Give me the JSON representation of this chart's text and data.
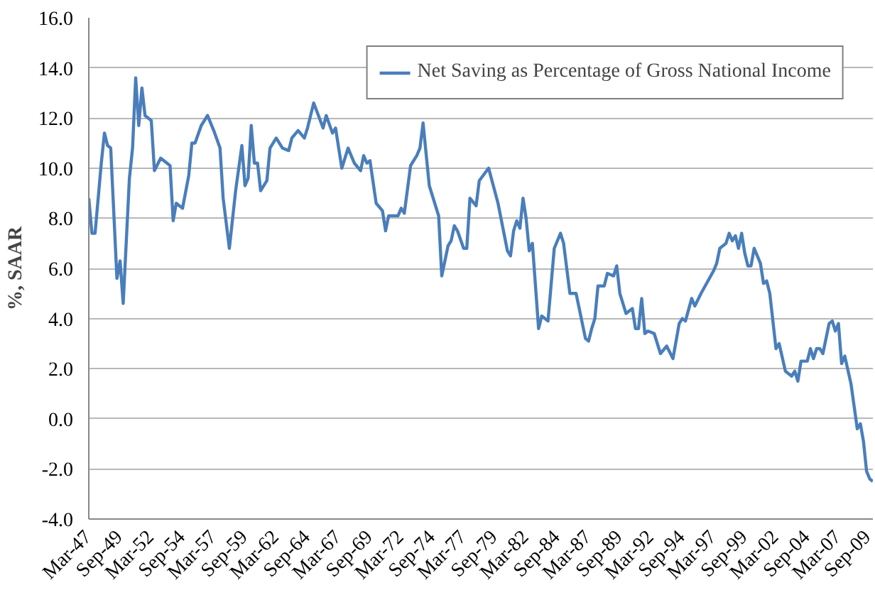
{
  "chart_data": {
    "type": "line",
    "ylabel": "%, SAAR",
    "legend": "top right",
    "grid": "y",
    "line_style": "solid",
    "marker": "none",
    "xlim": [
      "1947-03",
      "2009-12"
    ],
    "ylim": [
      -4,
      16
    ],
    "yticks": [
      {
        "value": -4,
        "label": "-4.0"
      },
      {
        "value": -2,
        "label": "-2.0"
      },
      {
        "value": 0,
        "label": "0.0"
      },
      {
        "value": 2,
        "label": "2.0"
      },
      {
        "value": 4,
        "label": "4.0"
      },
      {
        "value": 6,
        "label": "6.0"
      },
      {
        "value": 8,
        "label": "8.0"
      },
      {
        "value": 10,
        "label": "10.0"
      },
      {
        "value": 12,
        "label": "12.0"
      },
      {
        "value": 14,
        "label": "14.0"
      },
      {
        "value": 16,
        "label": "16.0"
      }
    ],
    "xticks": [
      {
        "value": "1947-03",
        "label": "Mar-47"
      },
      {
        "value": "1949-09",
        "label": "Sep-49"
      },
      {
        "value": "1952-03",
        "label": "Mar-52"
      },
      {
        "value": "1954-09",
        "label": "Sep-54"
      },
      {
        "value": "1957-03",
        "label": "Mar-57"
      },
      {
        "value": "1959-09",
        "label": "Sep-59"
      },
      {
        "value": "1962-03",
        "label": "Mar-62"
      },
      {
        "value": "1964-09",
        "label": "Sep-64"
      },
      {
        "value": "1967-03",
        "label": "Mar-67"
      },
      {
        "value": "1969-09",
        "label": "Sep-69"
      },
      {
        "value": "1972-03",
        "label": "Mar-72"
      },
      {
        "value": "1974-09",
        "label": "Sep-74"
      },
      {
        "value": "1977-03",
        "label": "Mar-77"
      },
      {
        "value": "1979-09",
        "label": "Sep-79"
      },
      {
        "value": "1982-03",
        "label": "Mar-82"
      },
      {
        "value": "1984-09",
        "label": "Sep-84"
      },
      {
        "value": "1987-03",
        "label": "Mar-87"
      },
      {
        "value": "1989-09",
        "label": "Sep-89"
      },
      {
        "value": "1992-03",
        "label": "Mar-92"
      },
      {
        "value": "1994-09",
        "label": "Sep-94"
      },
      {
        "value": "1997-03",
        "label": "Mar-97"
      },
      {
        "value": "1999-09",
        "label": "Sep-99"
      },
      {
        "value": "2002-03",
        "label": "Mar-02"
      },
      {
        "value": "2004-09",
        "label": "Sep-04"
      },
      {
        "value": "2007-03",
        "label": "Mar-07"
      },
      {
        "value": "2009-09",
        "label": "Sep-09"
      }
    ],
    "series": [
      {
        "name": "Net Saving as Percentage of Gross National Income",
        "color": "#4a7ebb",
        "x": [
          "1947-03",
          "1947-06",
          "1947-09",
          "1948-03",
          "1948-06",
          "1948-09",
          "1948-12",
          "1949-06",
          "1949-09",
          "1949-12",
          "1950-06",
          "1950-09",
          "1950-12",
          "1951-03",
          "1951-06",
          "1951-09",
          "1952-03",
          "1952-06",
          "1952-12",
          "1953-09",
          "1953-12",
          "1954-03",
          "1954-09",
          "1955-03",
          "1955-06",
          "1955-09",
          "1956-03",
          "1956-09",
          "1957-03",
          "1957-09",
          "1957-12",
          "1958-06",
          "1958-12",
          "1959-06",
          "1959-09",
          "1959-12",
          "1960-03",
          "1960-06",
          "1960-09",
          "1960-12",
          "1961-06",
          "1961-09",
          "1962-03",
          "1962-09",
          "1963-03",
          "1963-06",
          "1963-12",
          "1964-06",
          "1964-09",
          "1965-03",
          "1965-12",
          "1966-03",
          "1966-09",
          "1966-12",
          "1967-06",
          "1967-12",
          "1968-06",
          "1968-12",
          "1969-03",
          "1969-06",
          "1969-09",
          "1970-03",
          "1970-09",
          "1970-12",
          "1971-03",
          "1971-12",
          "1972-03",
          "1972-06",
          "1972-12",
          "1973-06",
          "1973-09",
          "1973-12",
          "1974-06",
          "1975-03",
          "1975-06",
          "1975-12",
          "1976-03",
          "1976-06",
          "1976-09",
          "1977-03",
          "1977-06",
          "1977-09",
          "1978-03",
          "1978-06",
          "1979-03",
          "1979-12",
          "1980-09",
          "1980-12",
          "1981-03",
          "1981-06",
          "1981-09",
          "1981-12",
          "1982-03",
          "1982-06",
          "1982-09",
          "1983-03",
          "1983-06",
          "1983-12",
          "1984-06",
          "1984-12",
          "1985-03",
          "1985-09",
          "1986-03",
          "1986-12",
          "1987-03",
          "1987-06",
          "1987-09",
          "1987-12",
          "1988-06",
          "1988-09",
          "1989-03",
          "1989-06",
          "1989-09",
          "1990-03",
          "1990-09",
          "1990-12",
          "1991-03",
          "1991-06",
          "1991-09",
          "1991-12",
          "1992-06",
          "1992-12",
          "1993-06",
          "1993-12",
          "1994-06",
          "1994-09",
          "1994-12",
          "1995-06",
          "1995-09",
          "1996-03",
          "1997-03",
          "1997-06",
          "1997-09",
          "1998-03",
          "1998-06",
          "1998-09",
          "1998-12",
          "1999-03",
          "1999-06",
          "1999-09",
          "1999-12",
          "2000-03",
          "2000-06",
          "2000-12",
          "2001-03",
          "2001-06",
          "2001-09",
          "2002-03",
          "2002-06",
          "2002-12",
          "2003-06",
          "2003-09",
          "2003-12",
          "2004-03",
          "2004-09",
          "2004-12",
          "2005-03",
          "2005-06",
          "2005-09",
          "2005-12",
          "2006-06",
          "2006-09",
          "2006-12",
          "2007-03",
          "2007-06",
          "2007-09",
          "2008-03",
          "2008-06",
          "2008-09",
          "2008-12",
          "2009-03",
          "2009-06",
          "2009-09",
          "2009-12"
        ],
        "values": [
          8.8,
          7.4,
          7.4,
          10.2,
          11.4,
          10.9,
          10.8,
          5.6,
          6.3,
          4.6,
          9.6,
          10.8,
          13.6,
          11.7,
          13.2,
          12.1,
          11.9,
          9.9,
          10.4,
          10.1,
          7.9,
          8.6,
          8.4,
          9.7,
          11.0,
          11.0,
          11.7,
          12.1,
          11.5,
          10.8,
          8.8,
          6.8,
          9.1,
          10.9,
          9.3,
          9.6,
          11.7,
          10.2,
          10.2,
          9.1,
          9.5,
          10.8,
          11.2,
          10.8,
          10.7,
          11.2,
          11.5,
          11.2,
          11.6,
          12.6,
          11.6,
          12.1,
          11.4,
          11.6,
          10.0,
          10.8,
          10.2,
          9.9,
          10.5,
          10.2,
          10.3,
          8.6,
          8.3,
          7.5,
          8.1,
          8.1,
          8.4,
          8.2,
          10.1,
          10.5,
          10.8,
          11.8,
          9.3,
          8.1,
          5.7,
          6.9,
          7.1,
          7.7,
          7.5,
          6.8,
          6.8,
          8.8,
          8.5,
          9.5,
          10.0,
          8.6,
          6.7,
          6.5,
          7.5,
          7.9,
          7.6,
          8.8,
          8.0,
          6.7,
          7.0,
          3.6,
          4.1,
          3.9,
          6.8,
          7.4,
          7.0,
          5.0,
          5.0,
          3.2,
          3.1,
          3.6,
          4.0,
          5.3,
          5.3,
          5.8,
          5.7,
          6.1,
          5.0,
          4.2,
          4.4,
          3.6,
          3.6,
          4.8,
          3.4,
          3.5,
          3.4,
          2.6,
          2.9,
          2.4,
          3.8,
          4.0,
          3.9,
          4.8,
          4.5,
          5.0,
          5.9,
          6.2,
          6.8,
          7.0,
          7.4,
          7.1,
          7.3,
          6.8,
          7.4,
          6.6,
          6.1,
          6.1,
          6.8,
          6.2,
          5.4,
          5.5,
          5.0,
          2.8,
          3.0,
          1.9,
          1.7,
          1.9,
          1.5,
          2.3,
          2.3,
          2.8,
          2.4,
          2.8,
          2.8,
          2.6,
          3.8,
          3.9,
          3.5,
          3.8,
          2.2,
          2.5,
          1.4,
          0.5,
          -0.4,
          -0.2,
          -0.9,
          -2.1,
          -2.4,
          -2.5
        ]
      }
    ]
  }
}
